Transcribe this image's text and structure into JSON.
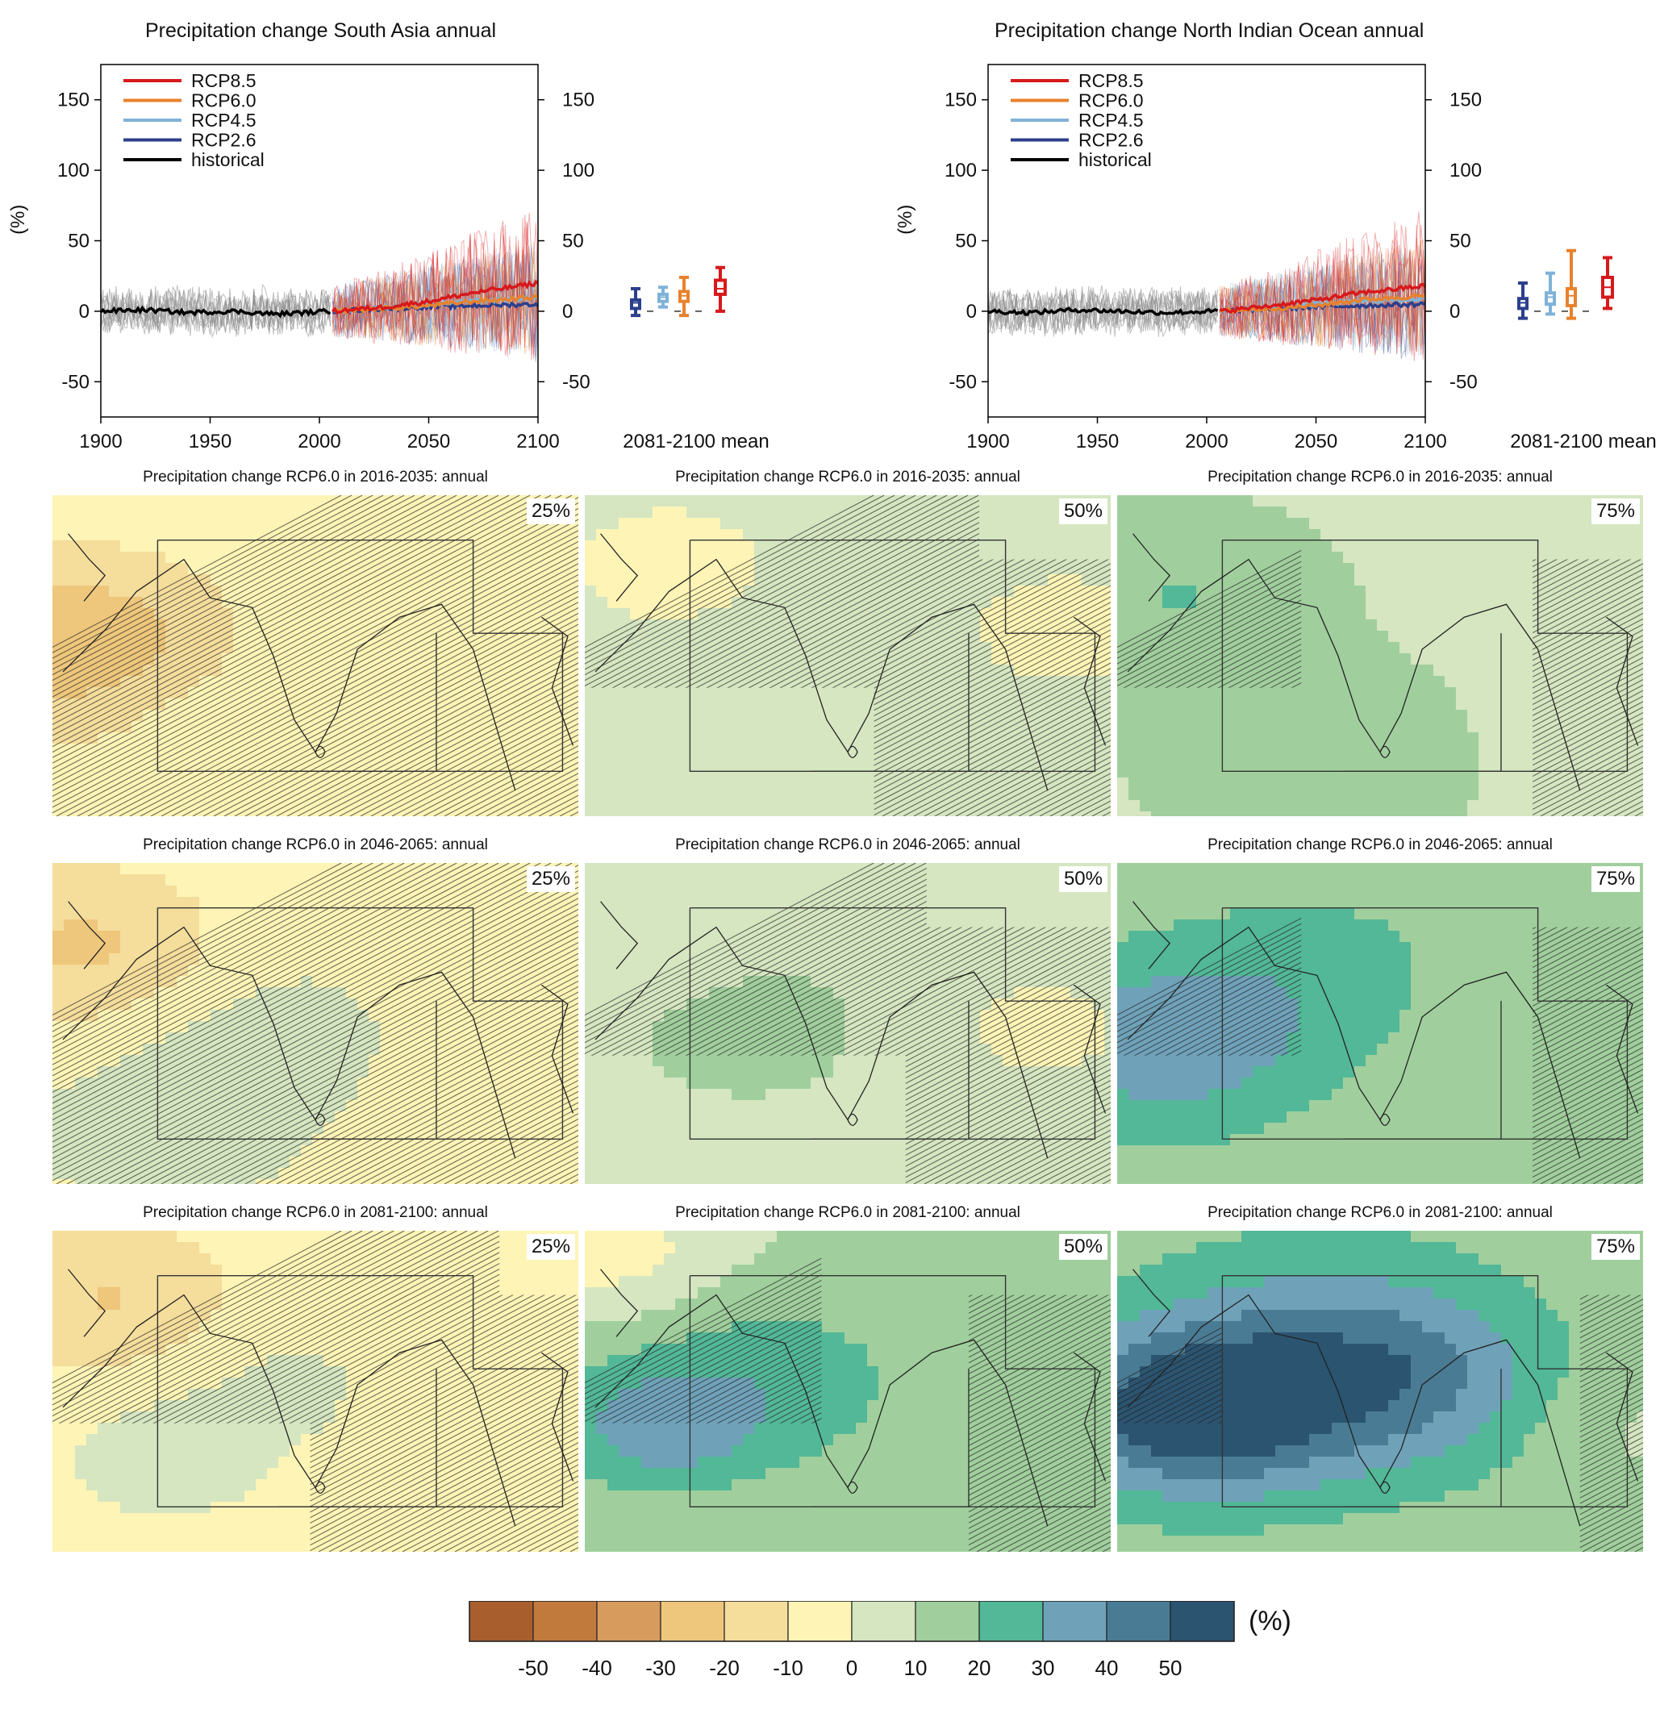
{
  "colors": {
    "rcp85": "#d7191c",
    "rcp60": "#e8822d",
    "rcp45": "#7fb2d8",
    "rcp26": "#2b3f8c",
    "historical": "#000000",
    "ensemble_grey": "#8c8c8c"
  },
  "colorbar": {
    "unit": "(%)",
    "tick_labels": [
      "-50",
      "-40",
      "-30",
      "-20",
      "-10",
      "0",
      "10",
      "20",
      "30",
      "40",
      "50"
    ],
    "bins": [
      {
        "from": -60,
        "to": -50,
        "color": "#a85f2d"
      },
      {
        "from": -50,
        "to": -40,
        "color": "#c27a3c"
      },
      {
        "from": -40,
        "to": -30,
        "color": "#d89b5e"
      },
      {
        "from": -30,
        "to": -20,
        "color": "#eec77c"
      },
      {
        "from": -20,
        "to": -10,
        "color": "#f5dd9c"
      },
      {
        "from": -10,
        "to": 0,
        "color": "#fdf4b6"
      },
      {
        "from": 0,
        "to": 10,
        "color": "#d5e6c1"
      },
      {
        "from": 10,
        "to": 20,
        "color": "#a0cf9d"
      },
      {
        "from": 20,
        "to": 30,
        "color": "#52b897"
      },
      {
        "from": 30,
        "to": 40,
        "color": "#6fa2b9"
      },
      {
        "from": 40,
        "to": 50,
        "color": "#4a7b94"
      },
      {
        "from": 50,
        "to": 60,
        "color": "#2b5470"
      }
    ]
  },
  "timeseries": [
    {
      "title": "Precipitation change South Asia annual",
      "ylabel": "(%)",
      "boxlabel": "2081-2100 mean",
      "xticks": [
        "1900",
        "1950",
        "2000",
        "2050",
        "2100"
      ],
      "yticks": [
        "-50",
        "0",
        "50",
        "100",
        "150"
      ],
      "legend": [
        "RCP8.5",
        "RCP6.0",
        "RCP4.5",
        "RCP2.6",
        "historical"
      ]
    },
    {
      "title": "Precipitation change North Indian Ocean annual",
      "ylabel": "(%)",
      "boxlabel": "2081-2100 mean",
      "xticks": [
        "1900",
        "1950",
        "2000",
        "2050",
        "2100"
      ],
      "yticks": [
        "-50",
        "0",
        "50",
        "100",
        "150"
      ],
      "legend": [
        "RCP8.5",
        "RCP6.0",
        "RCP4.5",
        "RCP2.6",
        "historical"
      ]
    }
  ],
  "maps": [
    {
      "title": "Precipitation change RCP6.0 in 2016-2035: annual",
      "pct": "25%"
    },
    {
      "title": "Precipitation change RCP6.0 in 2016-2035: annual",
      "pct": "50%"
    },
    {
      "title": "Precipitation change RCP6.0 in 2016-2035: annual",
      "pct": "75%"
    },
    {
      "title": "Precipitation change RCP6.0 in 2046-2065: annual",
      "pct": "25%"
    },
    {
      "title": "Precipitation change RCP6.0 in 2046-2065: annual",
      "pct": "50%"
    },
    {
      "title": "Precipitation change RCP6.0 in 2046-2065: annual",
      "pct": "75%"
    },
    {
      "title": "Precipitation change RCP6.0 in 2081-2100: annual",
      "pct": "25%"
    },
    {
      "title": "Precipitation change RCP6.0 in 2081-2100: annual",
      "pct": "50%"
    },
    {
      "title": "Precipitation change RCP6.0 in 2081-2100: annual",
      "pct": "75%"
    }
  ],
  "chart_data": [
    {
      "type": "line",
      "title": "Precipitation change South Asia annual",
      "xlabel": "",
      "ylabel": "(%)",
      "xlim": [
        1900,
        2100
      ],
      "ylim": [
        -75,
        175
      ],
      "legend_position": "top-left",
      "series": [
        {
          "name": "historical",
          "x": [
            1900,
            1920,
            1940,
            1960,
            1980,
            2005
          ],
          "values": [
            0,
            1,
            -1,
            0,
            -2,
            0
          ]
        },
        {
          "name": "RCP2.6",
          "x": [
            2006,
            2030,
            2050,
            2070,
            2100
          ],
          "values": [
            0,
            2,
            3,
            4,
            5
          ]
        },
        {
          "name": "RCP4.5",
          "x": [
            2006,
            2030,
            2050,
            2070,
            2100
          ],
          "values": [
            0,
            3,
            5,
            7,
            9
          ]
        },
        {
          "name": "RCP6.0",
          "x": [
            2006,
            2030,
            2050,
            2070,
            2100
          ],
          "values": [
            0,
            2,
            4,
            7,
            10
          ]
        },
        {
          "name": "RCP8.5",
          "x": [
            2006,
            2030,
            2050,
            2070,
            2100
          ],
          "values": [
            0,
            3,
            7,
            13,
            20
          ]
        }
      ],
      "box_2081_2100": [
        {
          "name": "RCP2.6",
          "min": -3,
          "q1": 2,
          "median": 6,
          "q3": 8,
          "max": 16
        },
        {
          "name": "RCP4.5",
          "min": 3,
          "q1": 7,
          "median": 10,
          "q3": 12,
          "max": 17
        },
        {
          "name": "RCP6.0",
          "min": -3,
          "q1": 7,
          "median": 11,
          "q3": 14,
          "max": 24
        },
        {
          "name": "RCP8.5",
          "min": 0,
          "q1": 12,
          "median": 16,
          "q3": 22,
          "max": 31
        }
      ]
    },
    {
      "type": "line",
      "title": "Precipitation change North Indian Ocean annual",
      "xlabel": "",
      "ylabel": "(%)",
      "xlim": [
        1900,
        2100
      ],
      "ylim": [
        -75,
        175
      ],
      "legend_position": "top-left",
      "series": [
        {
          "name": "historical",
          "x": [
            1900,
            1920,
            1940,
            1960,
            1980,
            2005
          ],
          "values": [
            0,
            -1,
            1,
            0,
            -1,
            0
          ]
        },
        {
          "name": "RCP2.6",
          "x": [
            2006,
            2030,
            2050,
            2070,
            2100
          ],
          "values": [
            0,
            2,
            3,
            4,
            5
          ]
        },
        {
          "name": "RCP4.5",
          "x": [
            2006,
            2030,
            2050,
            2070,
            2100
          ],
          "values": [
            0,
            3,
            5,
            7,
            9
          ]
        },
        {
          "name": "RCP6.0",
          "x": [
            2006,
            2030,
            2050,
            2070,
            2100
          ],
          "values": [
            0,
            2,
            4,
            8,
            11
          ]
        },
        {
          "name": "RCP8.5",
          "x": [
            2006,
            2030,
            2050,
            2070,
            2100
          ],
          "values": [
            0,
            4,
            8,
            13,
            18
          ]
        }
      ],
      "box_2081_2100": [
        {
          "name": "RCP2.6",
          "min": -5,
          "q1": 2,
          "median": 6,
          "q3": 9,
          "max": 20
        },
        {
          "name": "RCP4.5",
          "min": -2,
          "q1": 5,
          "median": 10,
          "q3": 13,
          "max": 27
        },
        {
          "name": "RCP6.0",
          "min": -5,
          "q1": 4,
          "median": 11,
          "q3": 16,
          "max": 43
        },
        {
          "name": "RCP8.5",
          "min": 2,
          "q1": 10,
          "median": 17,
          "q3": 24,
          "max": 38
        }
      ]
    }
  ]
}
